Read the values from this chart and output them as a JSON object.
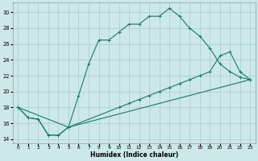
{
  "xlabel": "Humidex (Indice chaleur)",
  "xlim": [
    -0.5,
    23.5
  ],
  "ylim": [
    13.5,
    31.2
  ],
  "xticks": [
    0,
    1,
    2,
    3,
    4,
    5,
    6,
    7,
    8,
    9,
    10,
    11,
    12,
    13,
    14,
    15,
    16,
    17,
    18,
    19,
    20,
    21,
    22,
    23
  ],
  "yticks": [
    14,
    16,
    18,
    20,
    22,
    24,
    26,
    28,
    30
  ],
  "bg_color": "#cce8e8",
  "grid_color": "#aacccc",
  "line_color": "#1a7a6a",
  "line1_x": [
    0,
    1,
    2,
    3,
    4,
    5,
    23
  ],
  "line1_y": [
    18.0,
    16.7,
    16.5,
    14.5,
    14.5,
    15.5,
    21.5
  ],
  "line2_x": [
    0,
    1,
    2,
    3,
    4,
    5,
    6,
    7,
    8,
    9,
    10,
    11,
    12,
    13,
    14,
    15,
    16,
    17,
    18,
    19,
    20,
    21,
    22,
    23
  ],
  "line2_y": [
    18.0,
    16.7,
    16.5,
    14.5,
    14.5,
    15.5,
    19.5,
    23.5,
    26.5,
    26.5,
    27.5,
    28.5,
    28.5,
    29.5,
    29.5,
    30.5,
    29.5,
    28.0,
    27.0,
    25.5,
    23.5,
    22.5,
    21.8,
    21.5
  ],
  "line3_x": [
    0,
    5,
    10,
    11,
    12,
    13,
    14,
    15,
    16,
    17,
    18,
    19,
    20,
    21,
    22,
    23
  ],
  "line3_y": [
    18.0,
    15.5,
    18.0,
    18.5,
    19.0,
    19.5,
    20.0,
    20.5,
    21.0,
    21.5,
    22.0,
    22.5,
    24.5,
    25.0,
    22.5,
    21.5
  ]
}
